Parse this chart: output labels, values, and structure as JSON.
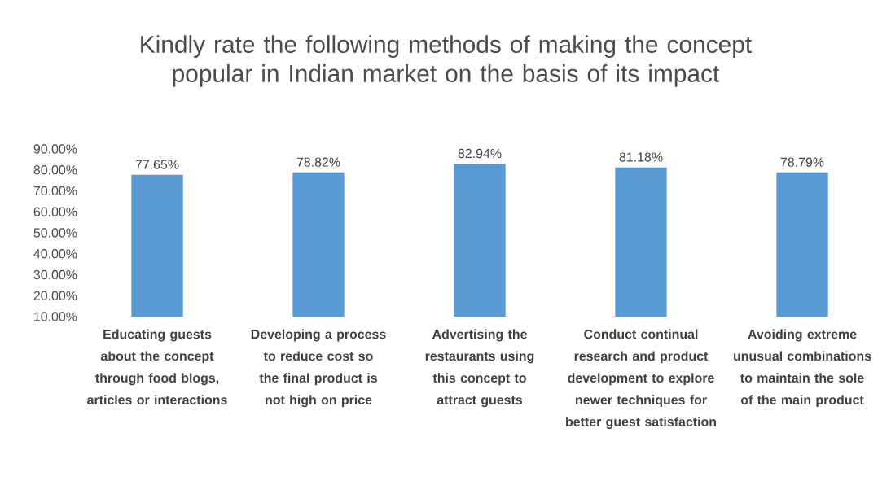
{
  "chart_data": {
    "type": "bar",
    "title": "Kindly rate the following methods of making the concept popular in Indian market on the basis of its impact",
    "categories": [
      "Educating guests about the concept through food blogs, articles or interactions",
      "Developing a process to reduce cost so the final product is not high on price",
      "Advertising the restaurants using this concept to attract guests",
      "Conduct continual research and product development to explore newer techniques for better guest satisfaction",
      "Avoiding extreme unusual combinations to maintain the sole of the main product"
    ],
    "values": [
      77.65,
      78.82,
      82.94,
      81.18,
      78.79
    ],
    "value_labels": [
      "77.65%",
      "78.82%",
      "82.94%",
      "81.18%",
      "78.79%"
    ],
    "color": "#5b9bd5",
    "ylim": [
      10,
      90
    ],
    "yticks": [
      {
        "value": 10,
        "label": "10.00%"
      },
      {
        "value": 20,
        "label": "20.00%"
      },
      {
        "value": 30,
        "label": "30.00%"
      },
      {
        "value": 40,
        "label": "40.00%"
      },
      {
        "value": 50,
        "label": "50.00%"
      },
      {
        "value": 60,
        "label": "60.00%"
      },
      {
        "value": 70,
        "label": "70.00%"
      },
      {
        "value": 80,
        "label": "80.00%"
      },
      {
        "value": 90,
        "label": "90.00%"
      }
    ],
    "grid": false
  }
}
